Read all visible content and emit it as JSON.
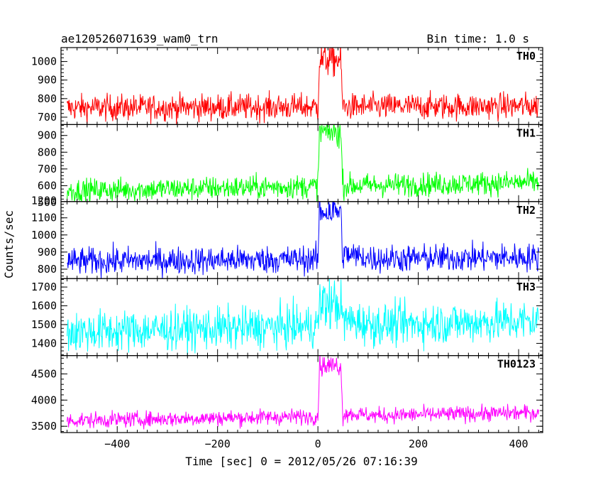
{
  "header": {
    "title": "ae120526071639_wam0_trn",
    "bin_time": "Bin time: 1.0 s"
  },
  "chart_data": {
    "type": "line",
    "xlabel": "Time [sec] 0 = 2012/05/26 07:16:39",
    "ylabel": "Counts/sec",
    "xlim": [
      -512,
      448
    ],
    "xticks": [
      -400,
      -200,
      0,
      200,
      400
    ],
    "data_range": [
      -500,
      440
    ],
    "burst": {
      "start": 0,
      "peak_start": 3,
      "peak_end": 45,
      "end": 50
    },
    "panels": [
      {
        "name": "TH0",
        "color": "#ff0000",
        "ylim": [
          660,
          1075
        ],
        "yticks": [
          700,
          800,
          900,
          1000
        ],
        "baseline": 750,
        "baseline_end": 760,
        "noise": 35,
        "peak": 1010,
        "post_bump": 0
      },
      {
        "name": "TH1",
        "color": "#00ff00",
        "ylim": [
          505,
          965
        ],
        "yticks": [
          500,
          600,
          700,
          800,
          900
        ],
        "baseline": 570,
        "baseline_end": 620,
        "noise": 35,
        "peak": 920,
        "post_bump": 0
      },
      {
        "name": "TH2",
        "color": "#0000ff",
        "ylim": [
          745,
          1195
        ],
        "yticks": [
          800,
          900,
          1000,
          1100,
          1200
        ],
        "baseline": 845,
        "baseline_end": 870,
        "noise": 40,
        "peak": 1140,
        "post_bump": 30
      },
      {
        "name": "TH3",
        "color": "#00ffff",
        "ylim": [
          1335,
          1745
        ],
        "yticks": [
          1400,
          1500,
          1600,
          1700
        ],
        "baseline": 1460,
        "baseline_end": 1520,
        "noise": 55,
        "peak": 1610,
        "post_bump": 30
      },
      {
        "name": "TH0123",
        "color": "#ff00ff",
        "ylim": [
          3380,
          4850
        ],
        "yticks": [
          3500,
          4000,
          4500
        ],
        "baseline": 3610,
        "baseline_end": 3760,
        "noise": 75,
        "peak": 4660,
        "post_bump": 50
      }
    ]
  }
}
